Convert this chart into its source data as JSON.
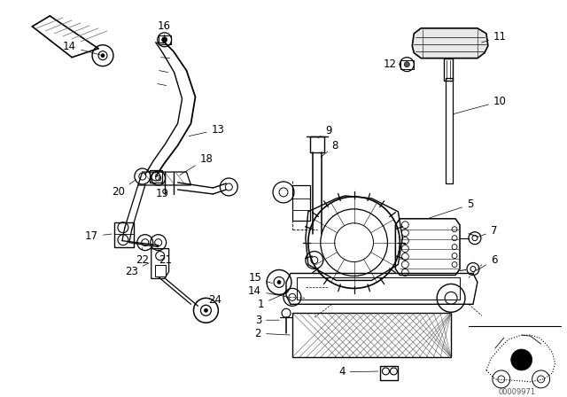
{
  "bg_color": "#ffffff",
  "fig_width": 6.4,
  "fig_height": 4.48,
  "dpi": 100,
  "watermark": "00009971",
  "part_number_fontsize": 8.5,
  "label_color": "#000000",
  "line_color": "#000000",
  "line_width": 0.7
}
